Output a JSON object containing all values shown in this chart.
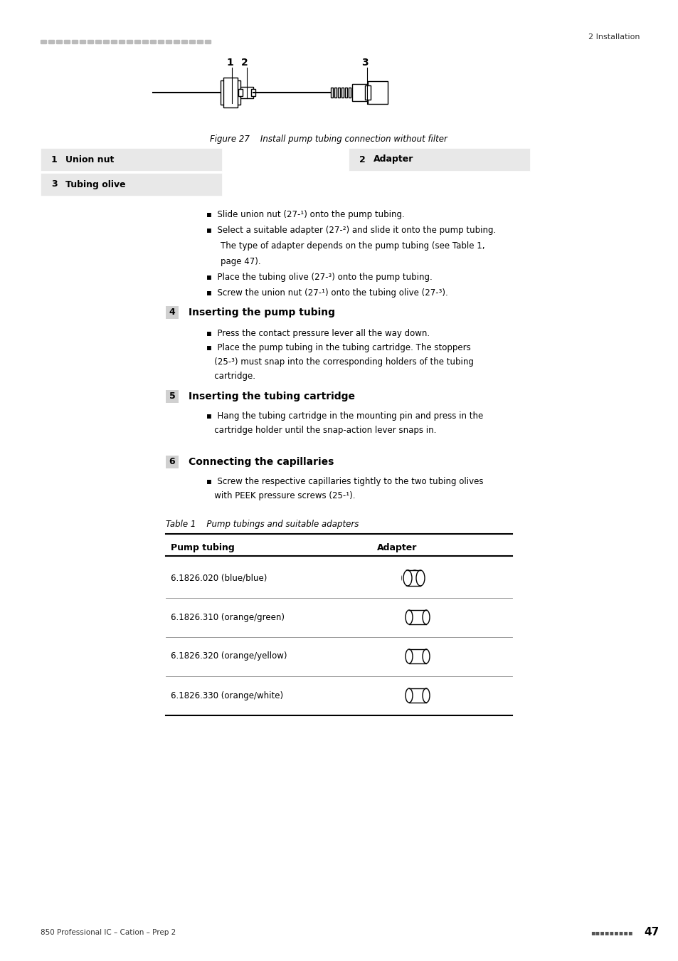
{
  "page_bg": "#ffffff",
  "header_dots_color": "#bbbbbb",
  "header_right_text": "2 Installation",
  "figure_caption": "Figure 27    Install pump tubing connection without filter",
  "legend_items": [
    {
      "num": "1",
      "label": "Union nut"
    },
    {
      "num": "2",
      "label": "Adapter"
    },
    {
      "num": "3",
      "label": "Tubing olive"
    }
  ],
  "bullet_sections": [
    {
      "bullet": "■  Slide union nut (27-¹) onto the pump tubing.",
      "indent": 0
    },
    {
      "bullet": "■  Select a suitable adapter (27-²) and slide it onto the pump tubing.",
      "indent": 0
    },
    {
      "bullet": "The type of adapter depends on the pump tubing (see Table 1,",
      "indent": 1
    },
    {
      "bullet": "page 47).",
      "indent": 1
    },
    {
      "bullet": "■  Place the tubing olive (27-³) onto the pump tubing.",
      "indent": 0
    },
    {
      "bullet": "■  Screw the union nut (27-¹) onto the tubing olive (27-³).",
      "indent": 0
    }
  ],
  "step4_title": "4   Inserting the pump tubing",
  "step4_bullets": [
    "Press the contact pressure lever all the way down.",
    "Place the pump tubing in the tubing cartridge. The stoppers (25-³) must snap into the corresponding holders of the tubing cartridge."
  ],
  "step5_title": "5   Inserting the tubing cartridge",
  "step5_bullets": [
    "Hang the tubing cartridge in the mounting pin and press in the cartridge holder until the snap-action lever snaps in."
  ],
  "step6_title": "6   Connecting the capillaries",
  "step6_bullets": [
    "Screw the respective capillaries tightly to the two tubing olives with PEEK pressure screws (25-¹)."
  ],
  "table_caption": "Table 1    Pump tubings and suitable adapters",
  "table_headers": [
    "Pump tubing",
    "Adapter"
  ],
  "table_rows": [
    "6.1826.020 (blue/blue)",
    "6.1826.310 (orange/green)",
    "6.1826.320 (orange/yellow)",
    "6.1826.330 (orange/white)"
  ],
  "footer_left": "850 Professional IC – Cation – Prep 2",
  "footer_dots": "■■■■■■■■■",
  "footer_page": "47",
  "legend_bg": "#e8e8e8",
  "step_bg": "#d0d0d0",
  "font_color": "#000000"
}
